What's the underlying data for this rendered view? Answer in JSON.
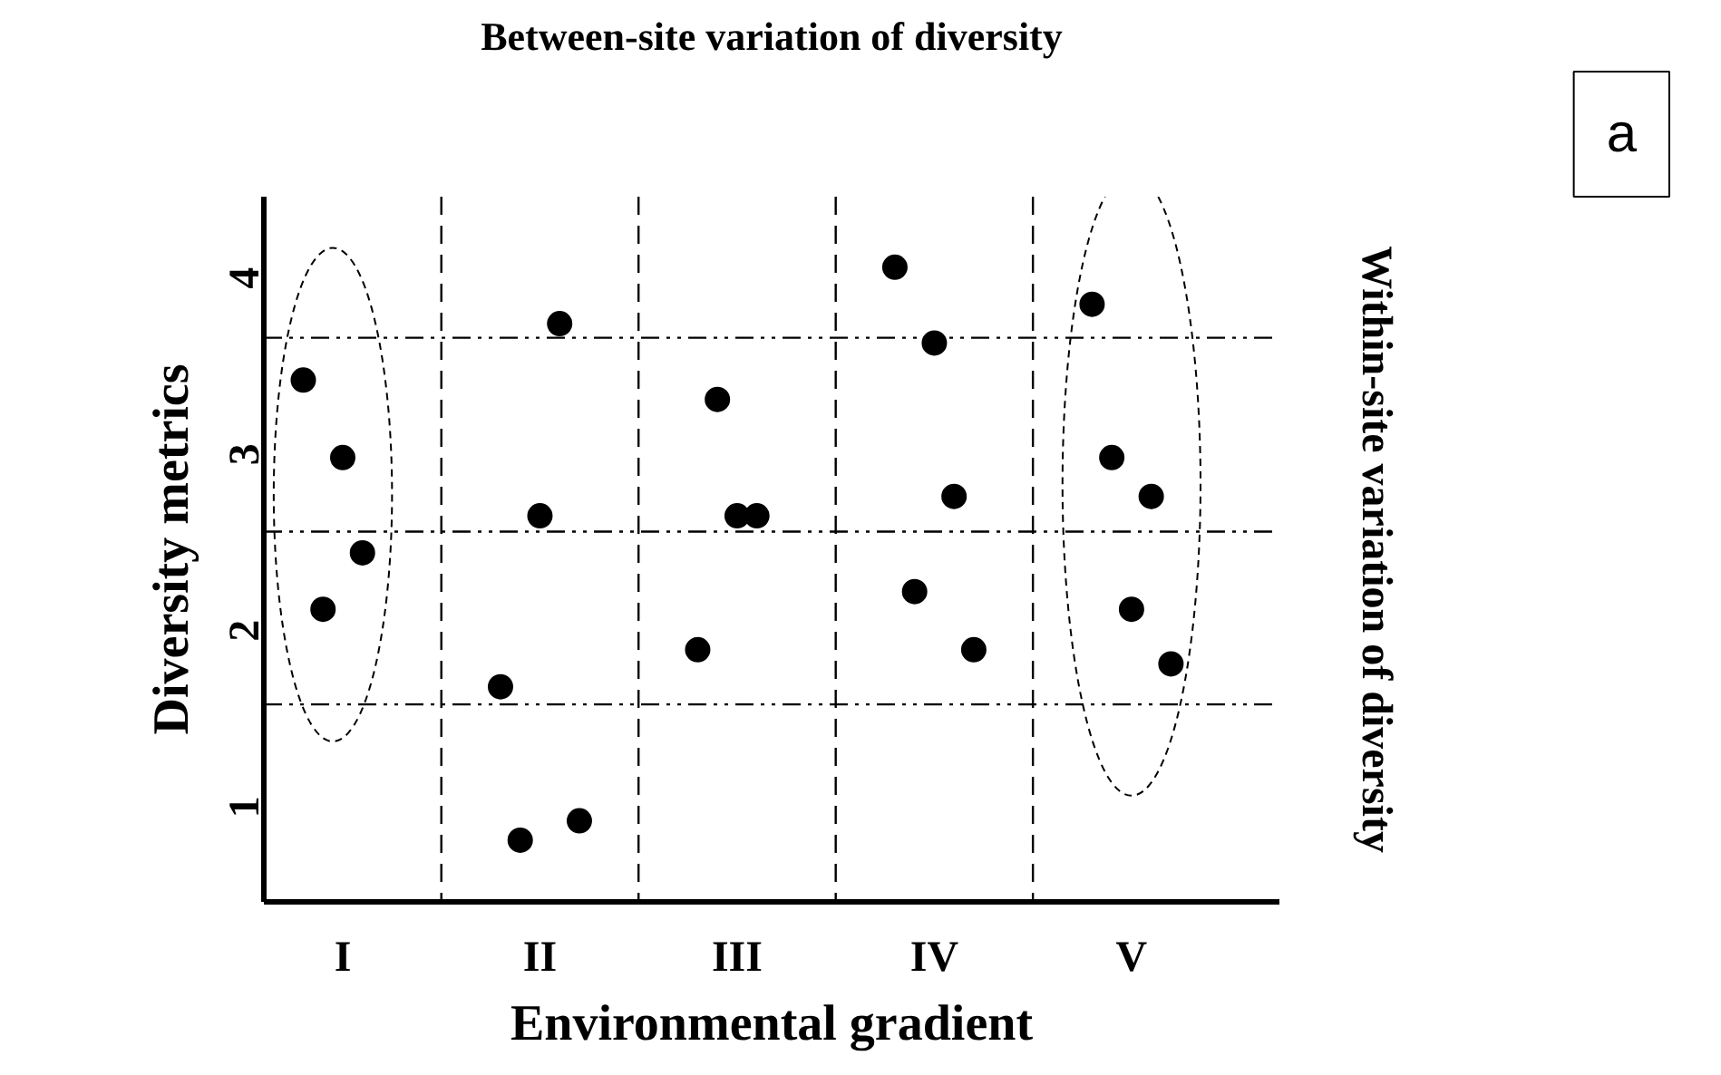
{
  "chart_data": {
    "type": "scatter",
    "title": "Between-site variation of diversity",
    "xlabel": "Environmental gradient",
    "ylabel": "Diversity metrics",
    "annotations": [
      "Within-site variation of diversity",
      "a"
    ],
    "categories": [
      "I",
      "II",
      "III",
      "IV",
      "V"
    ],
    "series": [
      {
        "color": "#000000",
        "values": [
          3.36,
          1.62,
          1.83,
          4.0,
          3.79
        ]
      },
      {
        "color": "#000000",
        "values": [
          2.06,
          0.75,
          3.25,
          2.16,
          2.92
        ]
      },
      {
        "color": "#000000",
        "values": [
          2.92,
          2.59,
          2.59,
          3.57,
          2.06
        ]
      },
      {
        "color": "#000000",
        "values": [
          2.38,
          3.68,
          2.59,
          2.7,
          2.7
        ]
      },
      {
        "color": "#000000",
        "values": [
          null,
          0.86,
          null,
          1.83,
          1.75
        ]
      }
    ],
    "marker": "circle",
    "grid": false,
    "ylim": [
      0.4,
      4.4
    ],
    "yticks": [
      1,
      2,
      3,
      4
    ],
    "ref_lines": [
      {
        "axis": "y",
        "value": 1.52,
        "line_style": "dashdot"
      },
      {
        "axis": "y",
        "value": 2.5,
        "line_style": "dashdot"
      },
      {
        "axis": "y",
        "value": 3.6,
        "line_style": "dashdot"
      }
    ]
  }
}
